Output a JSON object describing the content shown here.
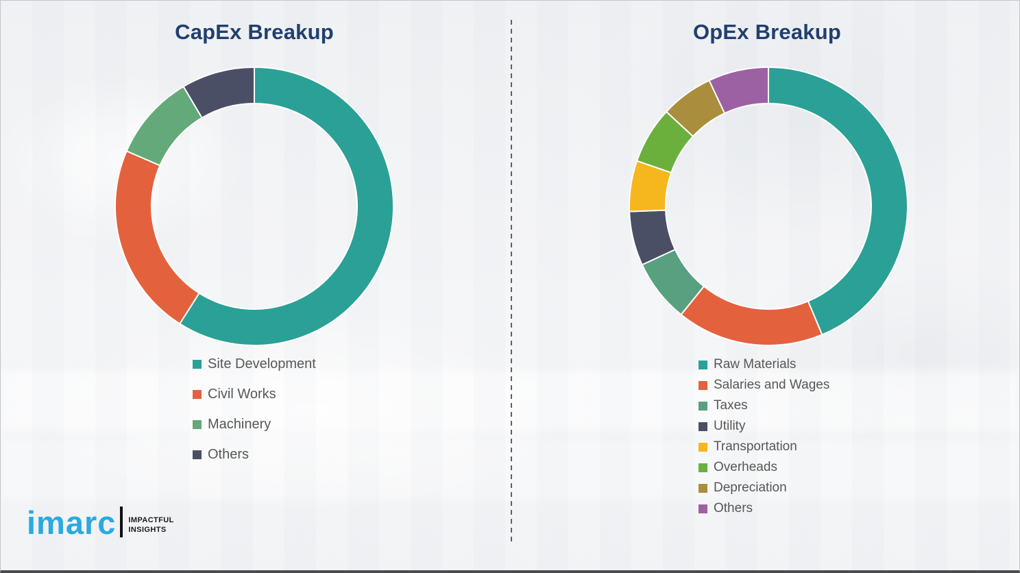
{
  "page": {
    "background_color": "#f1f2f4",
    "divider_color": "#5c6066",
    "title_color": "#213f6e",
    "legend_text_color": "#575757"
  },
  "brand": {
    "logo_text": "imarc",
    "logo_color": "#2ba9e0",
    "bar_color": "#111111",
    "tagline_line1": "IMPACTFUL",
    "tagline_line2": "INSIGHTS",
    "tagline_color": "#1a1a1a"
  },
  "chart_data": [
    {
      "type": "pie",
      "subtype": "donut",
      "title": "CapEx Breakup",
      "unit": "percent-of-ring",
      "start_angle_deg": 0,
      "direction": "clockwise",
      "legend_position": "below",
      "categories": [
        "Site Development",
        "Civil Works",
        "Machinery",
        "Others"
      ],
      "values": [
        59,
        22.5,
        10,
        8.5
      ],
      "colors": [
        "#2aa096",
        "#e3623d",
        "#63a97a",
        "#4b4f66"
      ]
    },
    {
      "type": "pie",
      "subtype": "donut",
      "title": "OpEx Breakup",
      "unit": "percent-of-ring",
      "start_angle_deg": 0,
      "direction": "clockwise",
      "legend_position": "below",
      "categories": [
        "Raw Materials",
        "Salaries and Wages",
        "Taxes",
        "Utility",
        "Transportation",
        "Overheads",
        "Depreciation",
        "Others"
      ],
      "values": [
        43.7,
        17.1,
        7.3,
        6.3,
        5.9,
        6.6,
        6.1,
        7.0
      ],
      "colors": [
        "#2aa096",
        "#e3623d",
        "#58a07f",
        "#4b4f66",
        "#f5b61e",
        "#6bb03c",
        "#aa8e3e",
        "#9c61a2"
      ]
    }
  ]
}
